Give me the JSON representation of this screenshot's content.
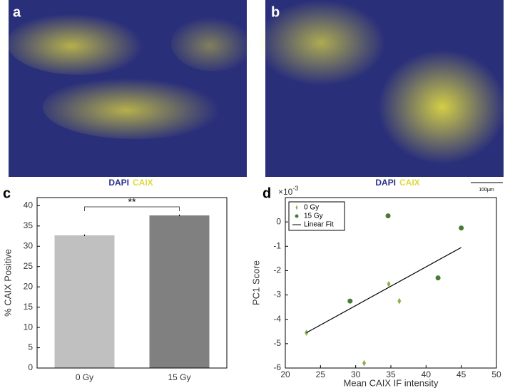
{
  "images": [
    {
      "label": "a",
      "stain_1": "DAPI",
      "stain_2": "CAIX"
    },
    {
      "label": "b",
      "stain_1": "DAPI",
      "stain_2": "CAIX",
      "scale_bar": "100μm"
    }
  ],
  "chart_data": [
    {
      "type": "bar",
      "panel_label": "c",
      "ylabel": "% CAIX Positive",
      "categories": [
        "0 Gy",
        "15 Gy"
      ],
      "values": [
        32.7,
        37.6
      ],
      "errors": [
        0.2,
        0.2
      ],
      "colors": [
        "#c0c0c0",
        "#808080"
      ],
      "ylim": [
        0,
        42
      ],
      "yticks": [
        0,
        5,
        10,
        15,
        20,
        25,
        30,
        35,
        40
      ],
      "annotation": "**"
    },
    {
      "type": "scatter",
      "panel_label": "d",
      "xlabel": "Mean CAIX IF intensity",
      "ylabel": "PC1 Score",
      "y_multiplier": "×10",
      "y_multiplier_power": "-3",
      "xlim": [
        20,
        50
      ],
      "xticks": [
        20,
        25,
        30,
        35,
        40,
        45,
        50
      ],
      "ylim": [
        -6,
        1
      ],
      "yticks": [
        -6,
        -5,
        -4,
        -3,
        -2,
        -1,
        0
      ],
      "series": [
        {
          "name": "0 Gy",
          "color": "#8db04f",
          "marker": "diamond",
          "x": [
            23,
            31.2,
            34.7,
            36.2
          ],
          "values": [
            -4.55,
            -5.8,
            -2.55,
            -3.25
          ]
        },
        {
          "name": "15 Gy",
          "color": "#4a7a35",
          "marker": "circle",
          "x": [
            29.2,
            34.6,
            41.7,
            45
          ],
          "values": [
            -3.25,
            0.25,
            -2.3,
            -0.25
          ]
        },
        {
          "name": "Linear Fit",
          "color": "#000000",
          "marker": "line",
          "x": [
            23,
            45
          ],
          "values": [
            -4.55,
            -1.05
          ]
        }
      ]
    }
  ]
}
